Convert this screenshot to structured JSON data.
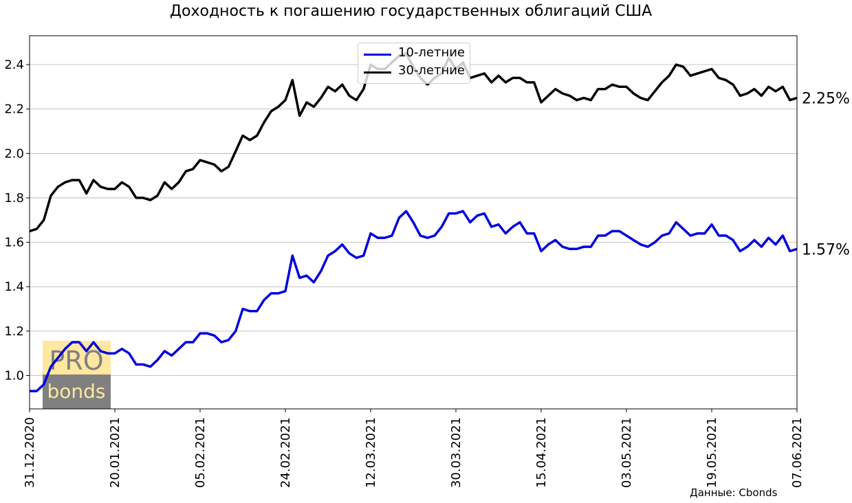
{
  "chart_data": {
    "type": "line",
    "title": "Доходность к погашению государственных облигаций США",
    "source": "Данные: Cbonds",
    "watermark": [
      "PRO",
      "bonds"
    ],
    "ylim": [
      0.85,
      2.53
    ],
    "yticks": [
      1.0,
      1.2,
      1.4,
      1.6,
      1.8,
      2.0,
      2.2,
      2.4
    ],
    "ytick_labels": [
      "1.0",
      "1.2",
      "1.4",
      "1.6",
      "1.8",
      "2.0",
      "2.2",
      "2.4"
    ],
    "xtick_labels": [
      "31.12.2020",
      "20.01.2021",
      "05.02.2021",
      "24.02.2021",
      "12.03.2021",
      "30.03.2021",
      "15.04.2021",
      "03.05.2021",
      "19.05.2021",
      "07.06.2021"
    ],
    "grid": "horizontal",
    "legend_position": "top-center",
    "series": [
      {
        "name": "10-летние",
        "color": "#0000dd",
        "end_label": "1.57%",
        "values": [
          0.93,
          0.93,
          0.96,
          1.04,
          1.08,
          1.12,
          1.15,
          1.15,
          1.11,
          1.15,
          1.11,
          1.1,
          1.1,
          1.12,
          1.1,
          1.05,
          1.05,
          1.04,
          1.07,
          1.11,
          1.09,
          1.12,
          1.15,
          1.15,
          1.19,
          1.19,
          1.18,
          1.15,
          1.16,
          1.2,
          1.3,
          1.29,
          1.29,
          1.34,
          1.37,
          1.37,
          1.38,
          1.54,
          1.44,
          1.45,
          1.42,
          1.47,
          1.54,
          1.56,
          1.59,
          1.55,
          1.53,
          1.54,
          1.64,
          1.62,
          1.62,
          1.63,
          1.71,
          1.74,
          1.69,
          1.63,
          1.62,
          1.63,
          1.67,
          1.73,
          1.73,
          1.74,
          1.69,
          1.72,
          1.73,
          1.67,
          1.68,
          1.64,
          1.67,
          1.69,
          1.64,
          1.64,
          1.56,
          1.59,
          1.61,
          1.58,
          1.57,
          1.57,
          1.58,
          1.58,
          1.63,
          1.63,
          1.65,
          1.65,
          1.63,
          1.61,
          1.59,
          1.58,
          1.6,
          1.63,
          1.64,
          1.69,
          1.66,
          1.63,
          1.64,
          1.64,
          1.68,
          1.63,
          1.63,
          1.61,
          1.56,
          1.58,
          1.61,
          1.58,
          1.62,
          1.59,
          1.63,
          1.56,
          1.57
        ]
      },
      {
        "name": "30-летние",
        "color": "#000000",
        "end_label": "2.25%",
        "values": [
          1.65,
          1.66,
          1.7,
          1.81,
          1.85,
          1.87,
          1.88,
          1.88,
          1.82,
          1.88,
          1.85,
          1.84,
          1.84,
          1.87,
          1.85,
          1.8,
          1.8,
          1.79,
          1.81,
          1.87,
          1.84,
          1.87,
          1.92,
          1.93,
          1.97,
          1.96,
          1.95,
          1.92,
          1.94,
          2.01,
          2.08,
          2.06,
          2.08,
          2.14,
          2.19,
          2.21,
          2.24,
          2.33,
          2.17,
          2.23,
          2.21,
          2.25,
          2.3,
          2.28,
          2.31,
          2.26,
          2.24,
          2.29,
          2.4,
          2.38,
          2.38,
          2.41,
          2.44,
          2.45,
          2.39,
          2.34,
          2.31,
          2.34,
          2.36,
          2.43,
          2.38,
          2.41,
          2.34,
          2.35,
          2.36,
          2.32,
          2.35,
          2.32,
          2.34,
          2.34,
          2.32,
          2.32,
          2.23,
          2.26,
          2.29,
          2.27,
          2.26,
          2.24,
          2.25,
          2.24,
          2.29,
          2.29,
          2.31,
          2.3,
          2.3,
          2.27,
          2.25,
          2.24,
          2.28,
          2.32,
          2.35,
          2.4,
          2.39,
          2.35,
          2.36,
          2.37,
          2.38,
          2.34,
          2.33,
          2.31,
          2.26,
          2.27,
          2.29,
          2.26,
          2.3,
          2.28,
          2.3,
          2.24,
          2.25
        ]
      }
    ]
  }
}
